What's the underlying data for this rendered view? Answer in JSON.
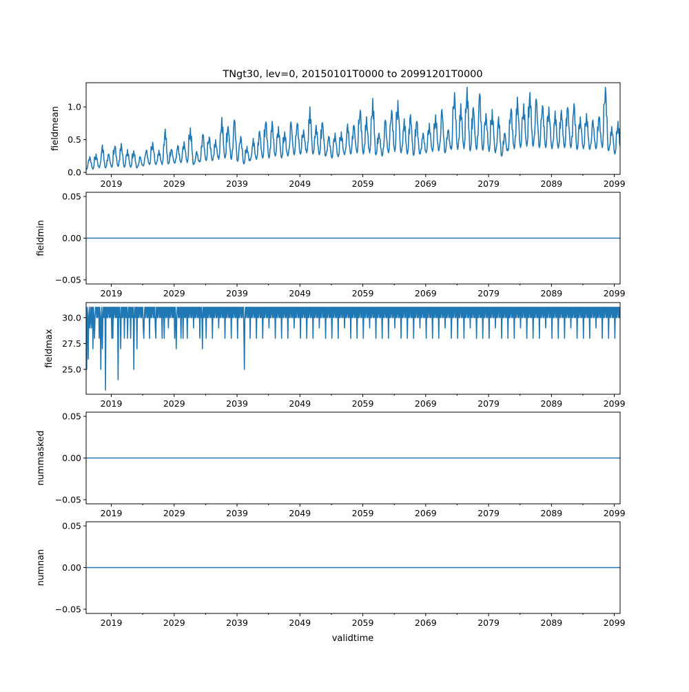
{
  "chart_data": {
    "type": "line",
    "title": "TNgt30, lev=0, 20150101T0000 to 20991201T0000",
    "xlabel": "validtime",
    "x_range": [
      "2015-01",
      "2099-12"
    ],
    "x_ticks": [
      "2019",
      "2029",
      "2039",
      "2049",
      "2059",
      "2069",
      "2079",
      "2089",
      "2099"
    ],
    "color": "#1f77b4",
    "panels": [
      {
        "ylabel": "fieldmean",
        "ylim": [
          -0.03,
          1.37
        ],
        "yticks": [
          "0.0",
          "0.5",
          "1.0"
        ],
        "ytick_values": [
          0,
          0.5,
          1.0
        ],
        "kind": "seasonal",
        "start_year": 2015,
        "annual_peaks": [
          0.24,
          0.28,
          0.42,
          0.28,
          0.4,
          0.44,
          0.35,
          0.33,
          0.24,
          0.34,
          0.46,
          0.34,
          0.66,
          0.35,
          0.41,
          0.47,
          0.68,
          0.32,
          0.58,
          0.54,
          0.5,
          0.84,
          0.7,
          0.8,
          0.55,
          0.4,
          0.52,
          0.63,
          0.77,
          0.78,
          0.7,
          0.62,
          0.77,
          0.75,
          0.65,
          1.0,
          0.72,
          0.76,
          0.55,
          0.6,
          0.62,
          0.74,
          0.72,
          0.95,
          0.85,
          1.13,
          0.6,
          0.8,
          0.95,
          1.1,
          0.82,
          0.88,
          0.78,
          0.6,
          0.75,
          0.88,
          0.96,
          0.65,
          1.22,
          1.05,
          1.3,
          0.99,
          1.2,
          0.9,
          0.96,
          0.85,
          0.6,
          0.97,
          1.15,
          1.05,
          1.22,
          1.12,
          1.02,
          1.0,
          0.94,
          0.95,
          0.99,
          1.05,
          0.85,
          0.9,
          0.8,
          0.85,
          1.3,
          0.7,
          0.78
        ],
        "annual_troughs": [
          0.05,
          0.05,
          0.07,
          0.07,
          0.08,
          0.09,
          0.08,
          0.08,
          0.07,
          0.1,
          0.12,
          0.12,
          0.12,
          0.13,
          0.14,
          0.15,
          0.15,
          0.12,
          0.16,
          0.18,
          0.18,
          0.2,
          0.22,
          0.2,
          0.17,
          0.13,
          0.18,
          0.2,
          0.22,
          0.22,
          0.25,
          0.22,
          0.25,
          0.27,
          0.28,
          0.3,
          0.28,
          0.27,
          0.25,
          0.22,
          0.24,
          0.27,
          0.28,
          0.3,
          0.28,
          0.3,
          0.27,
          0.25,
          0.3,
          0.32,
          0.3,
          0.28,
          0.26,
          0.28,
          0.3,
          0.32,
          0.33,
          0.3,
          0.35,
          0.35,
          0.36,
          0.33,
          0.35,
          0.34,
          0.32,
          0.3,
          0.25,
          0.33,
          0.36,
          0.38,
          0.4,
          0.4,
          0.38,
          0.38,
          0.36,
          0.37,
          0.38,
          0.38,
          0.35,
          0.36,
          0.35,
          0.36,
          0.38,
          0.33,
          0.28
        ]
      },
      {
        "ylabel": "fieldmin",
        "ylim": [
          -0.055,
          0.055
        ],
        "yticks": [
          "−0.05",
          "0.00",
          "0.05"
        ],
        "ytick_values": [
          -0.05,
          0,
          0.05
        ],
        "kind": "constant",
        "value": 0
      },
      {
        "ylabel": "fieldmax",
        "ylim": [
          22.6,
          31.45
        ],
        "yticks": [
          "25.0",
          "27.5",
          "30.0"
        ],
        "ytick_values": [
          25,
          27.5,
          30
        ],
        "kind": "days_in_month",
        "start_year": 2015,
        "overrides": [
          [
            2015,
            1,
            25
          ],
          [
            2015,
            2,
            25
          ],
          [
            2015,
            5,
            26
          ],
          [
            2015,
            8,
            29
          ],
          [
            2015,
            11,
            29
          ],
          [
            2016,
            2,
            27
          ],
          [
            2016,
            5,
            28
          ],
          [
            2017,
            5,
            25
          ],
          [
            2017,
            8,
            27
          ],
          [
            2018,
            2,
            23
          ],
          [
            2019,
            4,
            28
          ],
          [
            2020,
            2,
            24
          ],
          [
            2020,
            7,
            27
          ],
          [
            2021,
            8,
            28
          ],
          [
            2022,
            8,
            25
          ],
          [
            2023,
            2,
            27
          ],
          [
            2024,
            3,
            28
          ],
          [
            2026,
            1,
            29
          ],
          [
            2027,
            6,
            28
          ],
          [
            2029,
            5,
            27
          ],
          [
            2030,
            6,
            28
          ],
          [
            2033,
            7,
            27
          ],
          [
            2040,
            3,
            25
          ]
        ]
      },
      {
        "ylabel": "nummasked",
        "ylim": [
          -0.055,
          0.055
        ],
        "yticks": [
          "−0.05",
          "0.00",
          "0.05"
        ],
        "ytick_values": [
          -0.05,
          0,
          0.05
        ],
        "kind": "constant",
        "value": 0
      },
      {
        "ylabel": "numnan",
        "ylim": [
          -0.055,
          0.055
        ],
        "yticks": [
          "−0.05",
          "0.00",
          "0.05"
        ],
        "ytick_values": [
          -0.05,
          0,
          0.05
        ],
        "kind": "constant",
        "value": 0
      }
    ]
  }
}
